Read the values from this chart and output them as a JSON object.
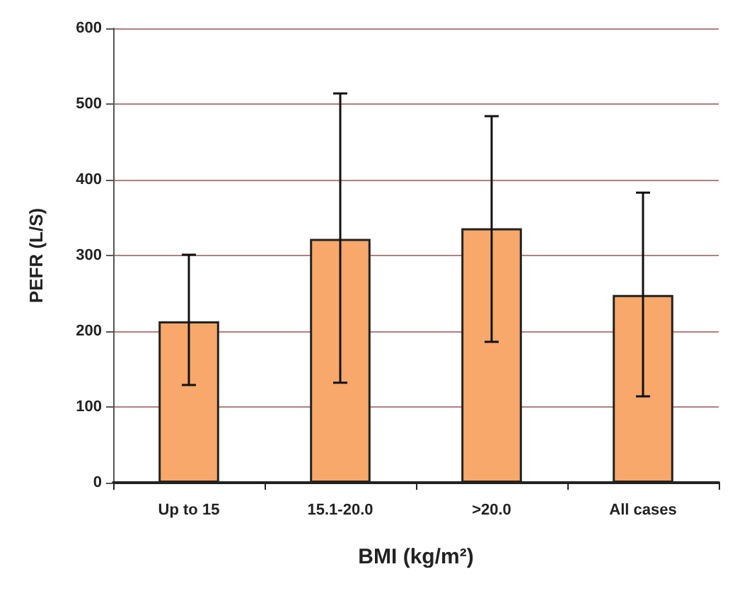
{
  "chart_data": {
    "type": "bar",
    "xlabel": "BMI (kg/m²)",
    "ylabel": "PEFR (L/S)",
    "categories": [
      "Up to 15",
      "15.1-20.0",
      ">20.0",
      "All cases"
    ],
    "values": [
      213,
      322,
      336,
      248
    ],
    "errors": [
      [
        129,
        301
      ],
      [
        132,
        514
      ],
      [
        186,
        484
      ],
      [
        114,
        383
      ]
    ],
    "color": "#f7a86a",
    "ylim": [
      0,
      600
    ],
    "yticks": [
      0,
      100,
      200,
      300,
      400,
      500,
      600
    ],
    "grid": "y"
  }
}
